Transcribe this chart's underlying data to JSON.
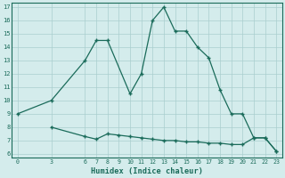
{
  "upper_x": [
    0,
    3,
    6,
    7,
    8,
    10,
    11,
    12,
    13,
    14,
    15,
    16,
    17,
    18,
    19,
    20,
    21,
    22,
    23
  ],
  "upper_y": [
    9,
    10,
    13,
    14.5,
    14.5,
    10.5,
    12,
    16,
    17,
    15.2,
    15.2,
    14.0,
    13.2,
    10.8,
    9.0,
    9.0,
    7.2,
    7.2,
    6.2
  ],
  "lower_x": [
    3,
    6,
    7,
    8,
    9,
    10,
    11,
    12,
    13,
    14,
    15,
    16,
    17,
    18,
    19,
    20,
    21,
    22,
    23
  ],
  "lower_y": [
    8.0,
    7.3,
    7.1,
    7.5,
    7.4,
    7.3,
    7.2,
    7.1,
    7.0,
    7.0,
    6.9,
    6.9,
    6.8,
    6.8,
    6.7,
    6.7,
    7.2,
    7.2,
    6.2
  ],
  "xticks": [
    0,
    3,
    6,
    7,
    8,
    9,
    10,
    11,
    12,
    13,
    14,
    15,
    16,
    17,
    18,
    19,
    20,
    21,
    22,
    23
  ],
  "yticks": [
    6,
    7,
    8,
    9,
    10,
    11,
    12,
    13,
    14,
    15,
    16,
    17
  ],
  "xlim": [
    -0.5,
    23.5
  ],
  "ylim": [
    5.7,
    17.3
  ],
  "xlabel": "Humidex (Indice chaleur)",
  "line_color": "#1a6b5a",
  "bg_color": "#d4ecec",
  "grid_color": "#aacece"
}
